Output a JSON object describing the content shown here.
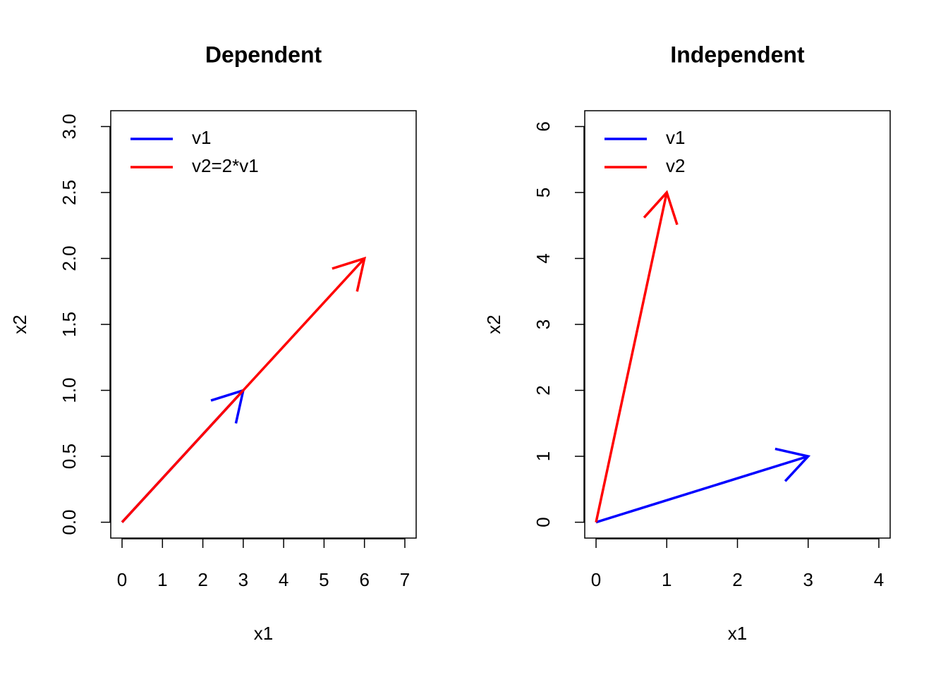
{
  "chart_data": [
    {
      "type": "vector",
      "title": "Dependent",
      "x_label": "x1",
      "y_label": "x2",
      "xlim": [
        -0.28,
        7.28
      ],
      "xticks": [
        0,
        1,
        2,
        3,
        4,
        5,
        6,
        7
      ],
      "ylim": [
        -0.12,
        3.12
      ],
      "yticks": [
        {
          "value": 0,
          "label": "0.0"
        },
        0.5,
        {
          "value": 1,
          "label": "1.0"
        },
        1.5,
        {
          "value": 2,
          "label": "2.0"
        },
        2.5,
        {
          "value": 3,
          "label": "3.0"
        }
      ],
      "legend": "top-left",
      "series": [
        {
          "name": "v1",
          "color": "#0000ff",
          "x": [
            0,
            3
          ],
          "values": [
            0,
            1
          ]
        },
        {
          "name": "v2=2*v1",
          "color": "#ff0000",
          "x": [
            0,
            6
          ],
          "values": [
            0,
            2
          ]
        }
      ]
    },
    {
      "type": "vector",
      "title": "Independent",
      "x_label": "x1",
      "y_label": "x2",
      "xlim": [
        -0.16,
        4.16
      ],
      "xticks": [
        0,
        1,
        2,
        3,
        4
      ],
      "ylim": [
        -0.24,
        6.24
      ],
      "yticks": [
        0,
        1,
        2,
        3,
        4,
        5,
        6
      ],
      "legend": "top-left",
      "series": [
        {
          "name": "v1",
          "color": "#0000ff",
          "x": [
            0,
            3
          ],
          "values": [
            0,
            1
          ]
        },
        {
          "name": "v2",
          "color": "#ff0000",
          "x": [
            0,
            1
          ],
          "values": [
            0,
            5
          ]
        }
      ]
    }
  ]
}
